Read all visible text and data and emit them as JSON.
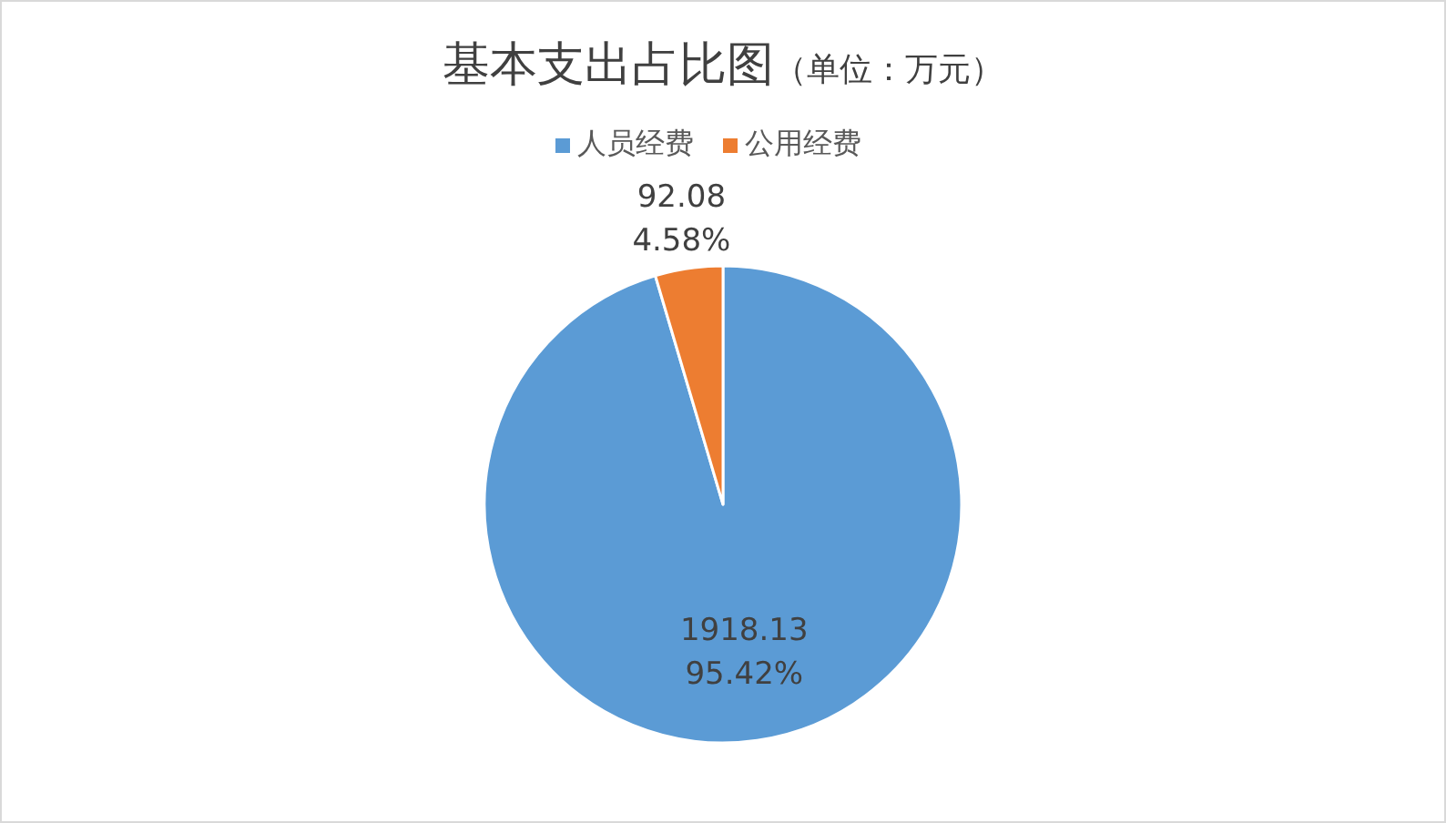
{
  "chart_data": {
    "type": "pie",
    "title": "基本支出占比图",
    "subtitle": "（单位：万元）",
    "categories": [
      "人员经费",
      "公用经费"
    ],
    "values": [
      1918.13,
      92.08
    ],
    "colors": [
      "#5b9bd5",
      "#ed7d31"
    ],
    "value_labels": [
      "1918.13\n95.42%",
      "92.08\n4.58%"
    ],
    "legend": "top"
  }
}
